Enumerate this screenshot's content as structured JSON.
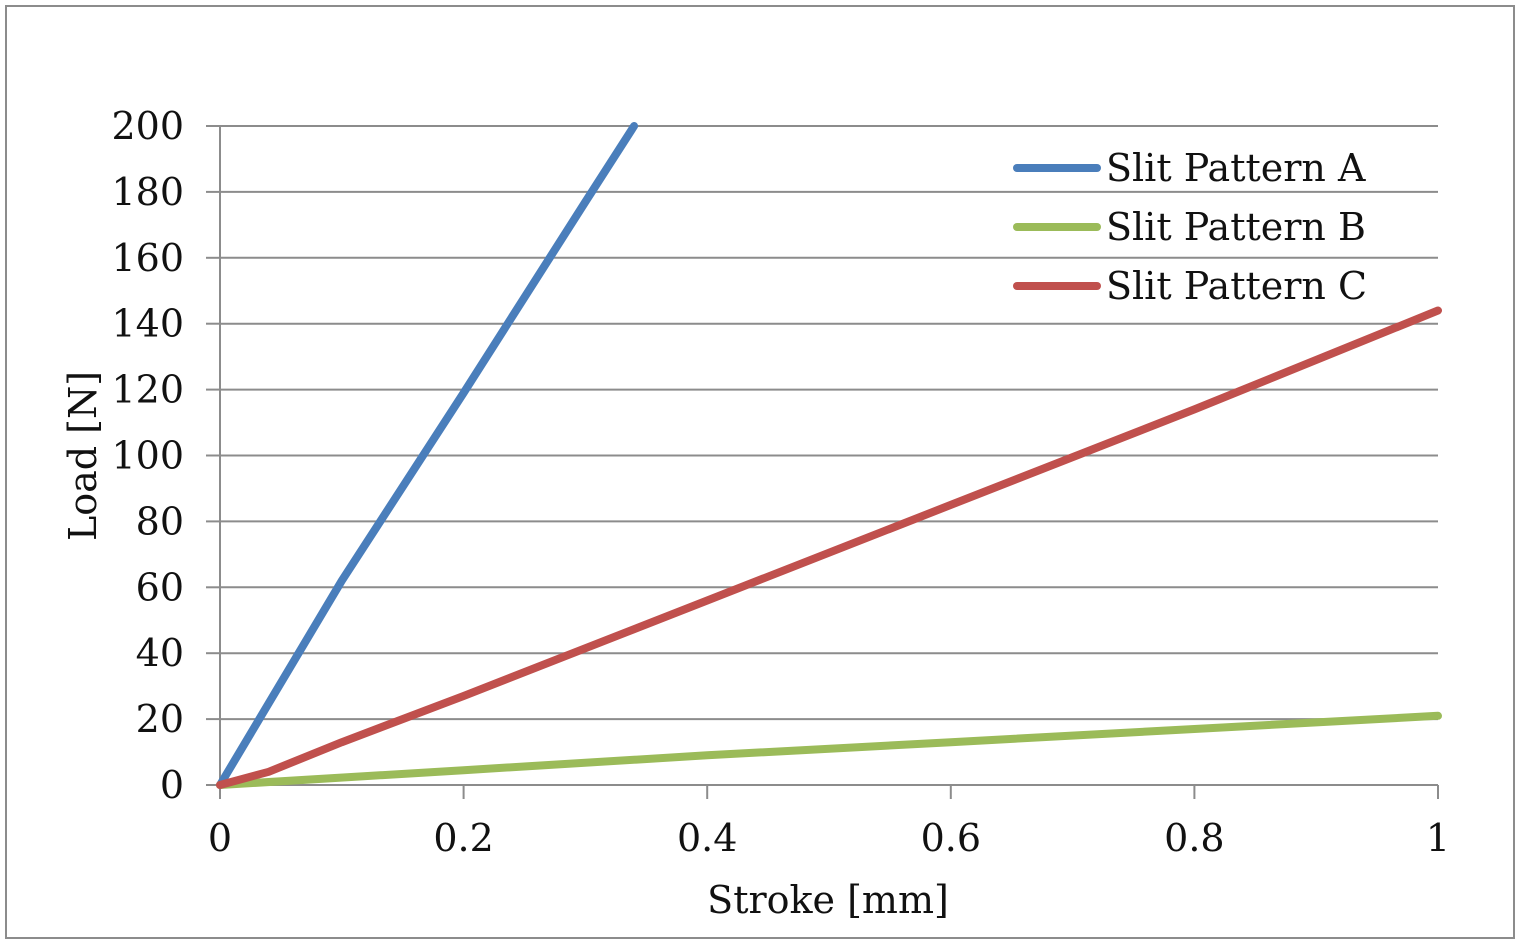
{
  "chart_data": {
    "type": "line",
    "xlabel": "Stroke [mm]",
    "ylabel": "Load [N]",
    "xlim": [
      0,
      1
    ],
    "ylim": [
      0,
      200
    ],
    "x_ticks": [
      0,
      0.2,
      0.4,
      0.6,
      0.8,
      1
    ],
    "x_tick_labels": [
      "0",
      "0.2",
      "0.4",
      "0.6",
      "0.8",
      "1"
    ],
    "y_ticks": [
      0,
      20,
      40,
      60,
      80,
      100,
      120,
      140,
      160,
      180,
      200
    ],
    "y_tick_labels": [
      "0",
      "20",
      "40",
      "60",
      "80",
      "100",
      "120",
      "140",
      "160",
      "180",
      "200"
    ],
    "grid": "horizontal",
    "legend_position": "top-right",
    "series": [
      {
        "name": "Slit Pattern A",
        "color": "#4a7ebb",
        "points": [
          [
            0,
            0
          ],
          [
            0.1,
            62
          ],
          [
            0.2,
            119
          ],
          [
            0.3,
            177
          ],
          [
            0.34,
            200
          ]
        ]
      },
      {
        "name": "Slit Pattern B",
        "color": "#9bbb59",
        "points": [
          [
            0,
            0
          ],
          [
            0.2,
            4.5
          ],
          [
            0.4,
            9
          ],
          [
            0.6,
            13
          ],
          [
            0.8,
            17
          ],
          [
            1,
            21
          ]
        ]
      },
      {
        "name": "Slit Pattern C",
        "color": "#c0504d",
        "points": [
          [
            0,
            0
          ],
          [
            0.04,
            4
          ],
          [
            0.1,
            13
          ],
          [
            0.2,
            27
          ],
          [
            0.4,
            56
          ],
          [
            0.6,
            85
          ],
          [
            0.8,
            114
          ],
          [
            1,
            144
          ]
        ]
      }
    ]
  }
}
